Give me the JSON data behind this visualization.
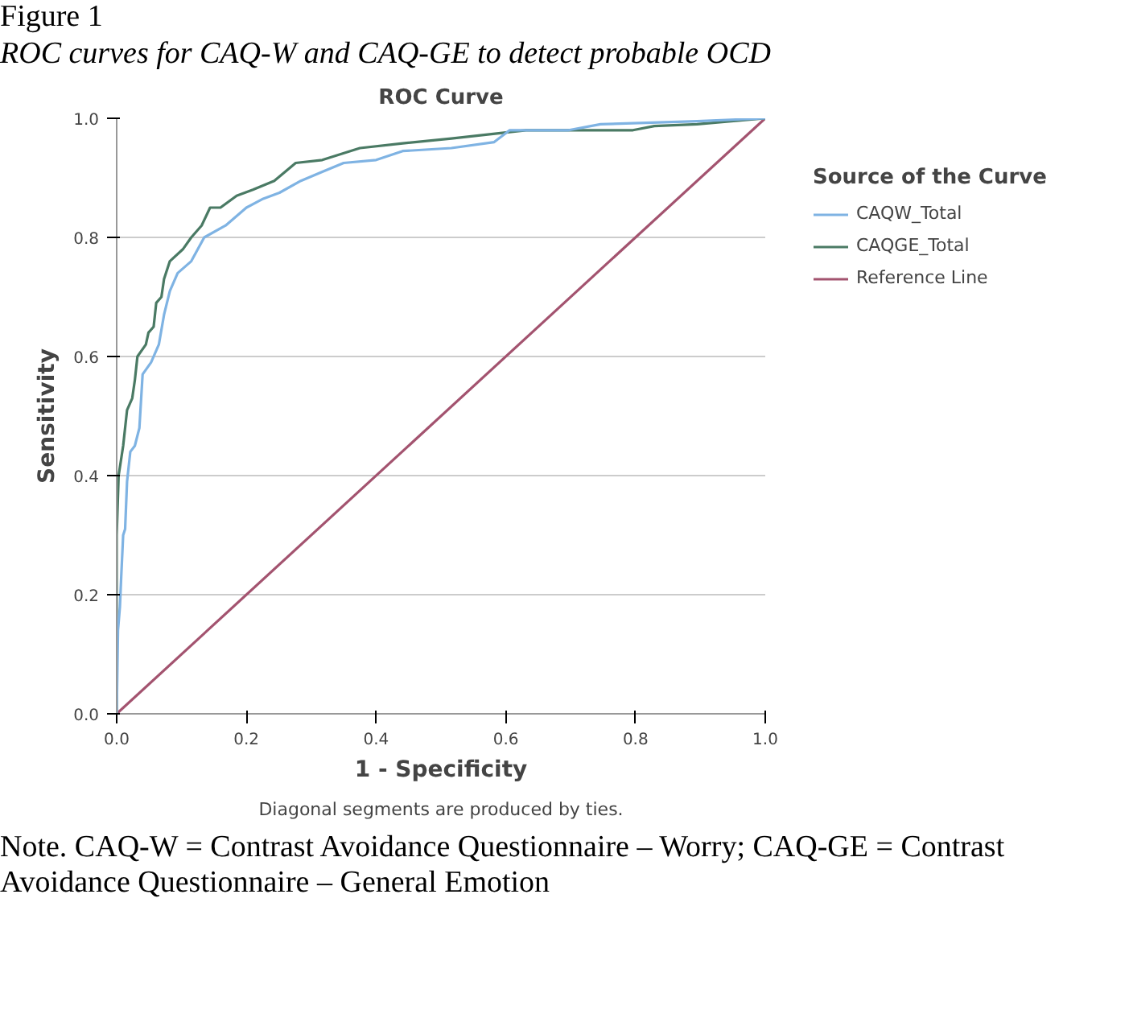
{
  "chart_data": {
    "type": "line",
    "title": "ROC Curve",
    "xlabel": "1 - Specificity",
    "ylabel": "Sensitivity",
    "legend_title": "Source of the Curve",
    "annotations": [
      "Figure 1",
      "ROC curves for CAQ-W and CAQ-GE to detect probable OCD",
      "Diagonal segments are produced by ties.",
      "Note. CAQ-W = Contrast Avoidance Questionnaire – Worry; CAQ-GE = Contrast Avoidance Questionnaire – General Emotion"
    ],
    "xlim": [
      0,
      1
    ],
    "ylim": [
      0,
      1
    ],
    "xticks": [
      {
        "value": 0,
        "label": "0.0"
      },
      {
        "value": 0.2,
        "label": "0.2"
      },
      {
        "value": 0.4,
        "label": "0.4"
      },
      {
        "value": 0.6,
        "label": "0.6"
      },
      {
        "value": 0.8,
        "label": "0.8"
      },
      {
        "value": 1,
        "label": "1.0"
      }
    ],
    "yticks": [
      {
        "value": 0,
        "label": "0.0"
      },
      {
        "value": 0.2,
        "label": "0.2"
      },
      {
        "value": 0.4,
        "label": "0.4"
      },
      {
        "value": 0.6,
        "label": "0.6"
      },
      {
        "value": 0.8,
        "label": "0.8"
      },
      {
        "value": 1,
        "label": "1.0"
      }
    ],
    "grid": "y",
    "legend": "right",
    "series": [
      {
        "name": "CAQW_Total",
        "color": "#7fb3e3",
        "x": [
          0,
          0.002,
          0.005,
          0.007,
          0.01,
          0.013,
          0.016,
          0.021,
          0.028,
          0.035,
          0.04,
          0.053,
          0.065,
          0.073,
          0.082,
          0.094,
          0.115,
          0.135,
          0.168,
          0.2,
          0.226,
          0.251,
          0.284,
          0.317,
          0.35,
          0.4,
          0.441,
          0.516,
          0.582,
          0.606,
          0.697,
          0.746,
          0.895,
          1
        ],
        "values": [
          0,
          0.14,
          0.18,
          0.23,
          0.3,
          0.31,
          0.39,
          0.44,
          0.45,
          0.48,
          0.57,
          0.59,
          0.62,
          0.67,
          0.71,
          0.74,
          0.76,
          0.8,
          0.82,
          0.85,
          0.865,
          0.875,
          0.895,
          0.91,
          0.925,
          0.93,
          0.945,
          0.95,
          0.96,
          0.98,
          0.98,
          0.99,
          0.995,
          1
        ]
      },
      {
        "name": "CAQGE_Total",
        "color": "#4a7a64",
        "x": [
          0,
          0,
          0.003,
          0.01,
          0.016,
          0.024,
          0.028,
          0.032,
          0.045,
          0.049,
          0.057,
          0.061,
          0.069,
          0.073,
          0.082,
          0.102,
          0.115,
          0.131,
          0.144,
          0.16,
          0.185,
          0.21,
          0.243,
          0.276,
          0.317,
          0.375,
          0.441,
          0.516,
          0.631,
          0.796,
          0.829,
          0.895,
          1
        ],
        "values": [
          0,
          0.3,
          0.4,
          0.45,
          0.51,
          0.53,
          0.56,
          0.6,
          0.62,
          0.64,
          0.65,
          0.69,
          0.7,
          0.73,
          0.76,
          0.78,
          0.8,
          0.82,
          0.85,
          0.85,
          0.87,
          0.88,
          0.895,
          0.925,
          0.93,
          0.95,
          0.958,
          0.966,
          0.98,
          0.98,
          0.987,
          0.99,
          1
        ]
      },
      {
        "name": "Reference Line",
        "color": "#a3536f",
        "x": [
          0,
          1
        ],
        "values": [
          0,
          1
        ]
      }
    ]
  }
}
